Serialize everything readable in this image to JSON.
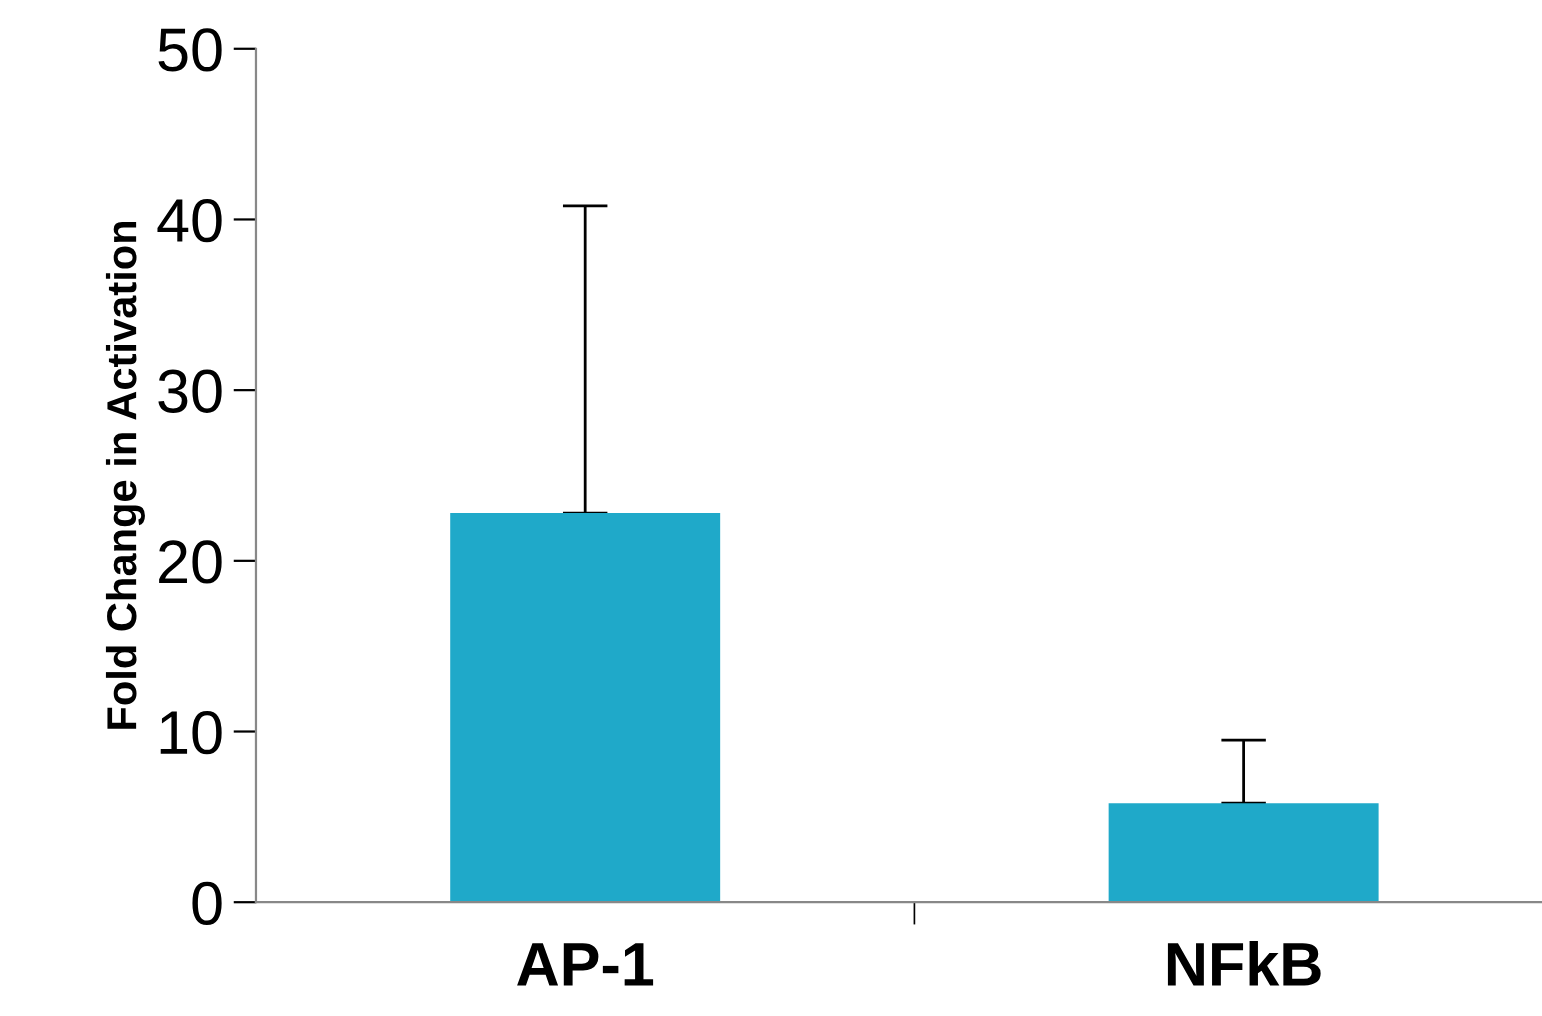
{
  "chart_data": {
    "type": "bar",
    "ylabel": "Fold Change in Activation",
    "categories": [
      "AP-1",
      "NFkB"
    ],
    "values": [
      22.8,
      5.8
    ],
    "errors": [
      [
        22.8,
        40.8
      ],
      [
        5.8,
        9.5
      ]
    ],
    "color": "#1fa9c9",
    "ylim": [
      0,
      50
    ],
    "yticks": [
      0,
      10,
      20,
      30,
      40,
      50
    ],
    "grid": false,
    "legend": false
  }
}
